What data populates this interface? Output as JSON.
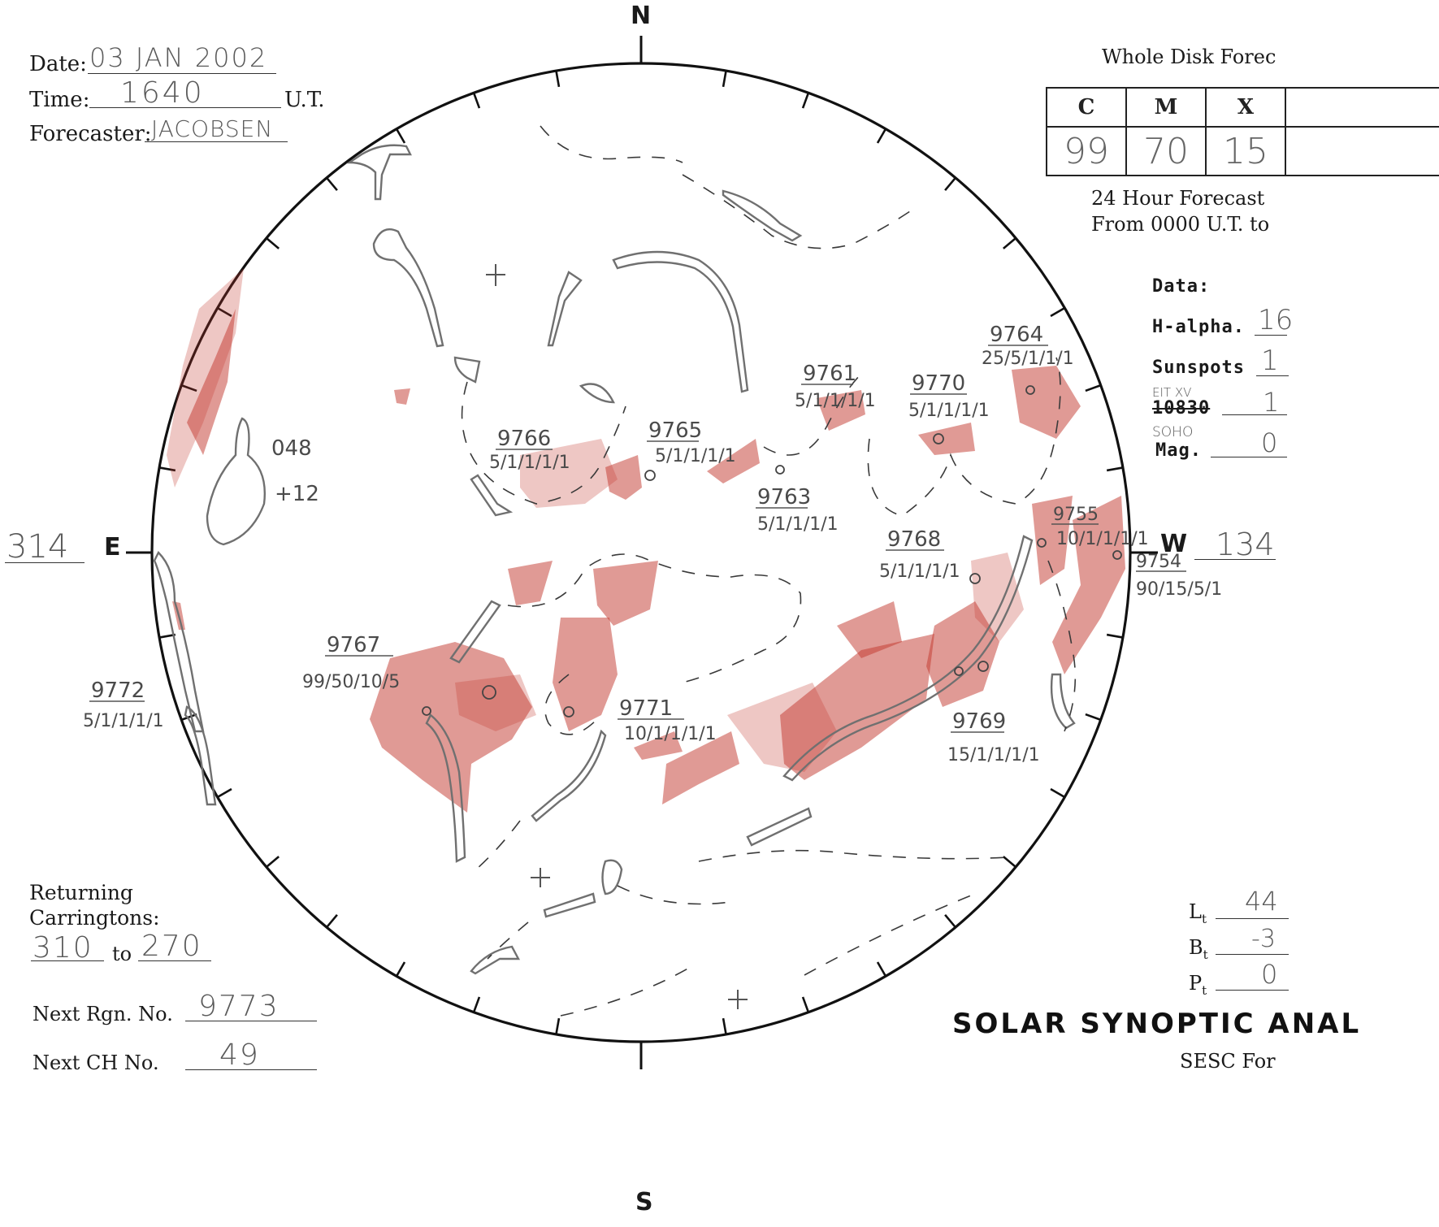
{
  "header": {
    "date_label": "Date:",
    "date_value": "03 JAN 2002",
    "time_label": "Time:",
    "time_value": "1640",
    "time_unit": "U.T.",
    "forecaster_label": "Forecaster:",
    "forecaster_value": "JACOBSEN"
  },
  "forecast": {
    "title": "Whole Disk Forec",
    "classes": [
      "C",
      "M",
      "X"
    ],
    "values": [
      "99",
      "70",
      "15"
    ],
    "period_line1": "24 Hour Forecast",
    "period_line2": "From 0000 U.T. to"
  },
  "data_panel": {
    "title": "Data:",
    "halpha_label": "H-alpha.",
    "halpha_value": "16",
    "sunspots_label": "Sunspots",
    "sunspots_value": "1",
    "he_note": "EIT XV",
    "he_label": "10830",
    "he_value": "1",
    "mag_note": "SOHO",
    "mag_label": "Mag.",
    "mag_value": "0"
  },
  "compass": {
    "north": "N",
    "south": "S",
    "east": "E",
    "west": "W"
  },
  "longitudes": {
    "east": "314",
    "west": "134"
  },
  "coronal_hole": {
    "number": "048",
    "polarity": "+12"
  },
  "regions": [
    {
      "number": "9764",
      "code": "25/5/1/1/1"
    },
    {
      "number": "9761",
      "code": "5/1/1/1/1"
    },
    {
      "number": "9770",
      "code": "5/1/1/1/1"
    },
    {
      "number": "9766",
      "code": "5/1/1/1/1"
    },
    {
      "number": "9765",
      "code": "5/1/1/1/1"
    },
    {
      "number": "9763",
      "code": "5/1/1/1/1"
    },
    {
      "number": "9768",
      "code": "5/1/1/1/1"
    },
    {
      "number": "9755",
      "code": "10/1/1/1/1"
    },
    {
      "number": "9754",
      "code": "90/15/5/1"
    },
    {
      "number": "9767",
      "code": "99/50/10/5"
    },
    {
      "number": "9772",
      "code": "5/1/1/1/1"
    },
    {
      "number": "9771",
      "code": "10/1/1/1/1"
    },
    {
      "number": "9769",
      "code": "15/1/1/1/1"
    }
  ],
  "returning": {
    "label_line1": "Returning",
    "label_line2": "Carringtons:",
    "from": "310",
    "to_label": "to",
    "to": "270"
  },
  "next_region": {
    "label": "Next Rgn. No.",
    "value": "9773"
  },
  "next_ch": {
    "label": "Next CH No.",
    "value": "49"
  },
  "orientation": {
    "lt_label": "L",
    "lt_value": "44",
    "bt_label": "B",
    "bt_value": "-3",
    "pt_label": "P",
    "pt_value": "0",
    "subscript": "t"
  },
  "footer": {
    "title": "SOLAR SYNOPTIC ANAL",
    "subtitle": "SESC For"
  },
  "colors": {
    "plage": "#c1352b",
    "filament": "#707070",
    "ink": "#1a1a1a"
  }
}
